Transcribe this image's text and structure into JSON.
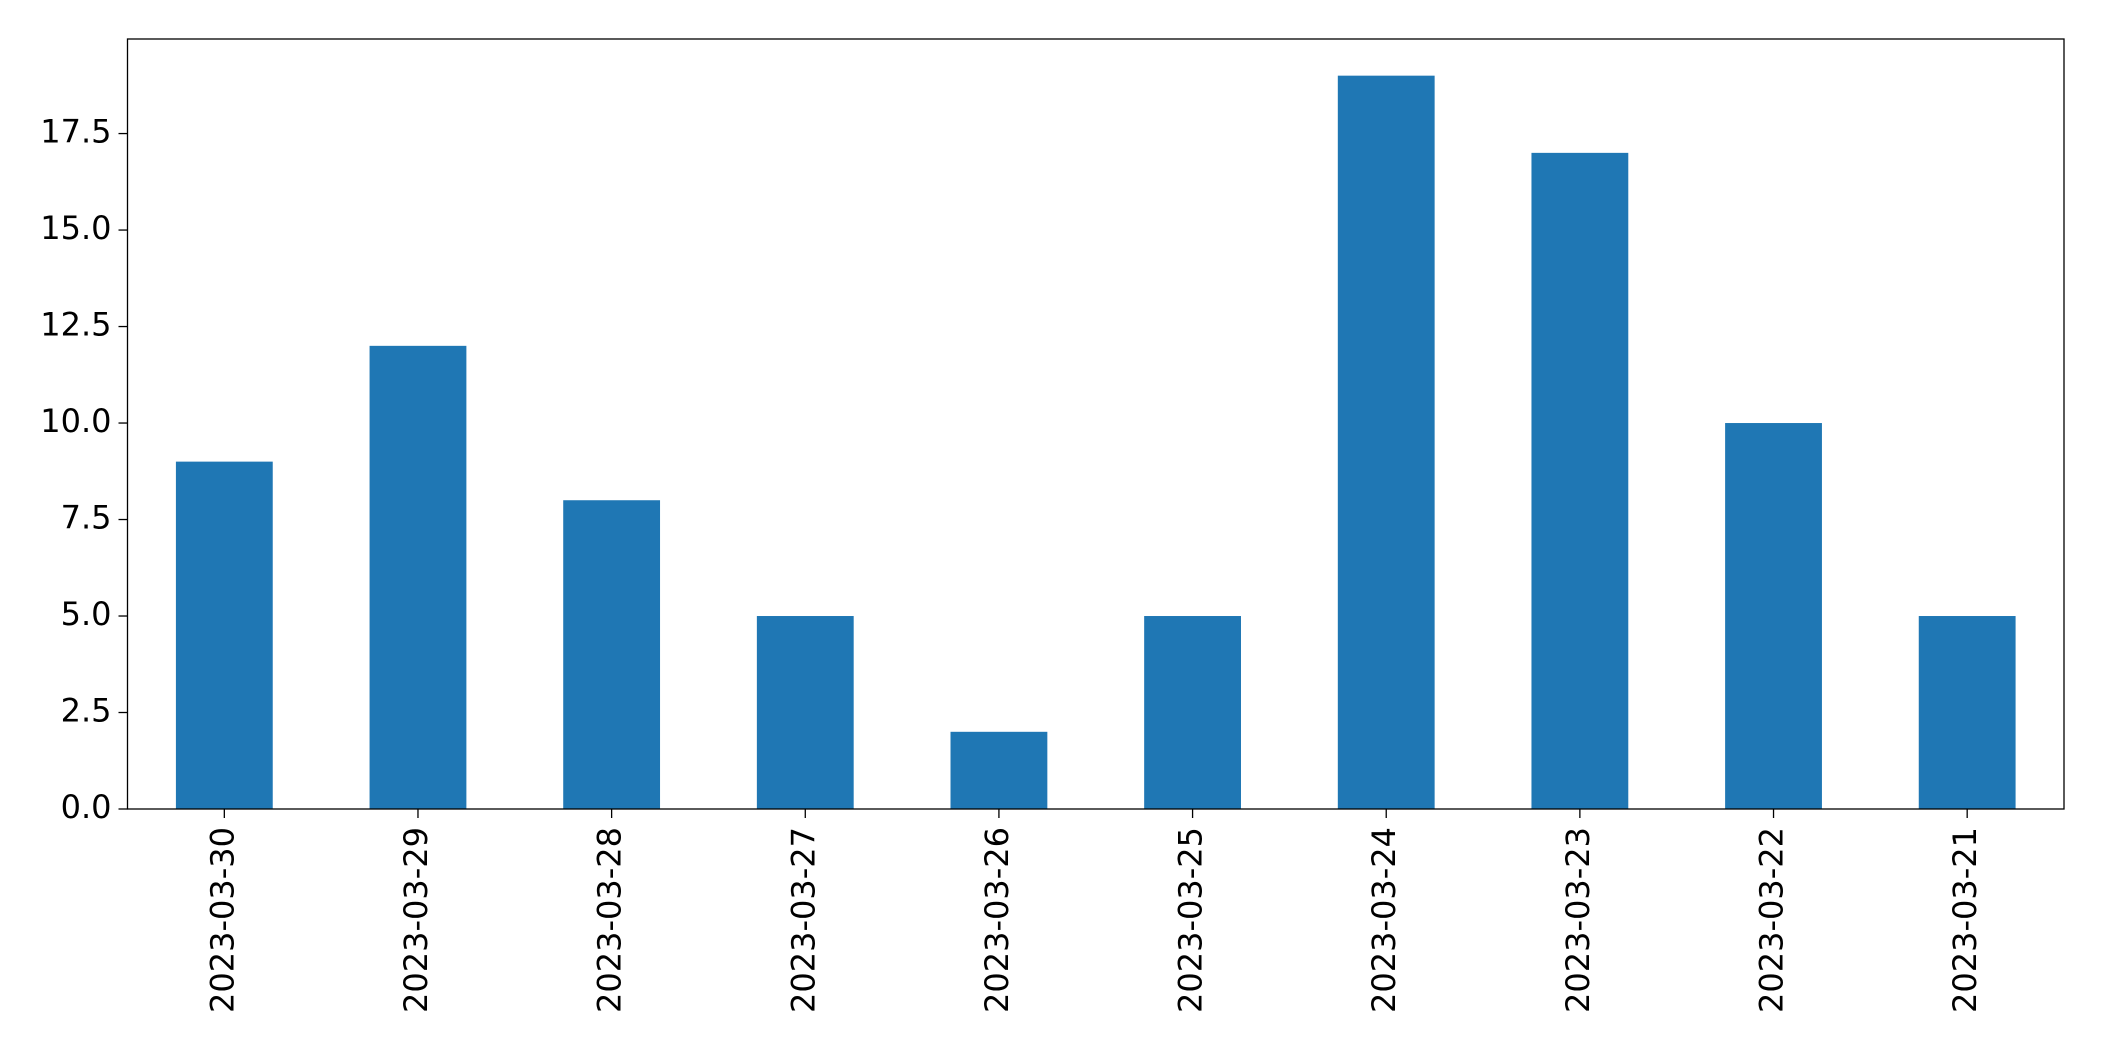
{
  "chart_data": {
    "type": "bar",
    "categories": [
      "2023-03-30",
      "2023-03-29",
      "2023-03-28",
      "2023-03-27",
      "2023-03-26",
      "2023-03-25",
      "2023-03-24",
      "2023-03-23",
      "2023-03-22",
      "2023-03-21"
    ],
    "values": [
      9,
      12,
      8,
      5,
      2,
      5,
      19,
      17,
      10,
      5
    ],
    "color": "#1f77b4",
    "ylim": [
      0,
      19.95
    ],
    "yticks": [
      {
        "value": 0,
        "label": "0.0"
      },
      2.5,
      {
        "value": 5,
        "label": "5.0"
      },
      7.5,
      {
        "value": 10,
        "label": "10.0"
      },
      12.5,
      {
        "value": 15,
        "label": "15.0"
      },
      17.5
    ],
    "grid": false
  }
}
